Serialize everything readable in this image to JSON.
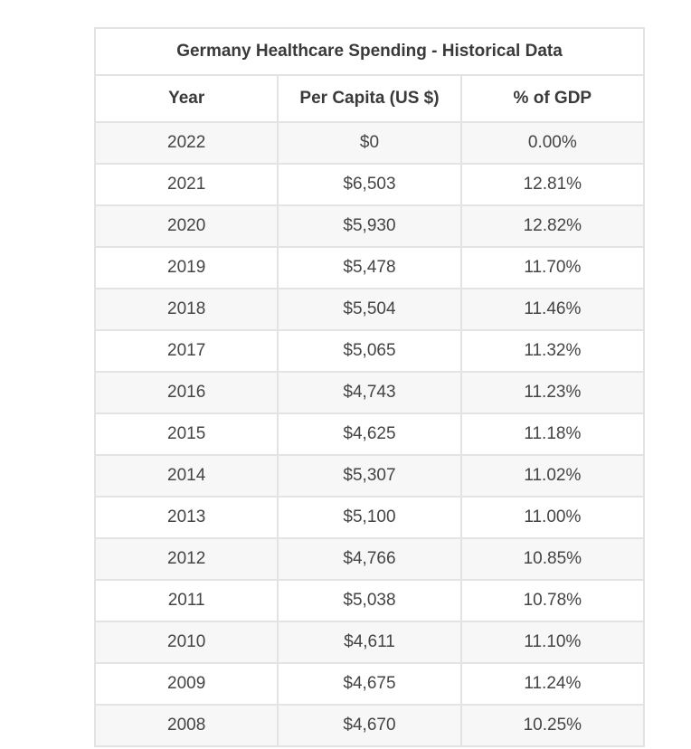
{
  "table": {
    "title": "Germany Healthcare Spending - Historical Data",
    "columns": [
      "Year",
      "Per Capita (US $)",
      "% of GDP"
    ],
    "rows": [
      [
        "2022",
        "$0",
        "0.00%"
      ],
      [
        "2021",
        "$6,503",
        "12.81%"
      ],
      [
        "2020",
        "$5,930",
        "12.82%"
      ],
      [
        "2019",
        "$5,478",
        "11.70%"
      ],
      [
        "2018",
        "$5,504",
        "11.46%"
      ],
      [
        "2017",
        "$5,065",
        "11.32%"
      ],
      [
        "2016",
        "$4,743",
        "11.23%"
      ],
      [
        "2015",
        "$4,625",
        "11.18%"
      ],
      [
        "2014",
        "$5,307",
        "11.02%"
      ],
      [
        "2013",
        "$5,100",
        "11.00%"
      ],
      [
        "2012",
        "$4,766",
        "10.85%"
      ],
      [
        "2011",
        "$5,038",
        "10.78%"
      ],
      [
        "2010",
        "$4,611",
        "11.10%"
      ],
      [
        "2009",
        "$4,675",
        "11.24%"
      ],
      [
        "2008",
        "$4,670",
        "10.25%"
      ]
    ]
  }
}
